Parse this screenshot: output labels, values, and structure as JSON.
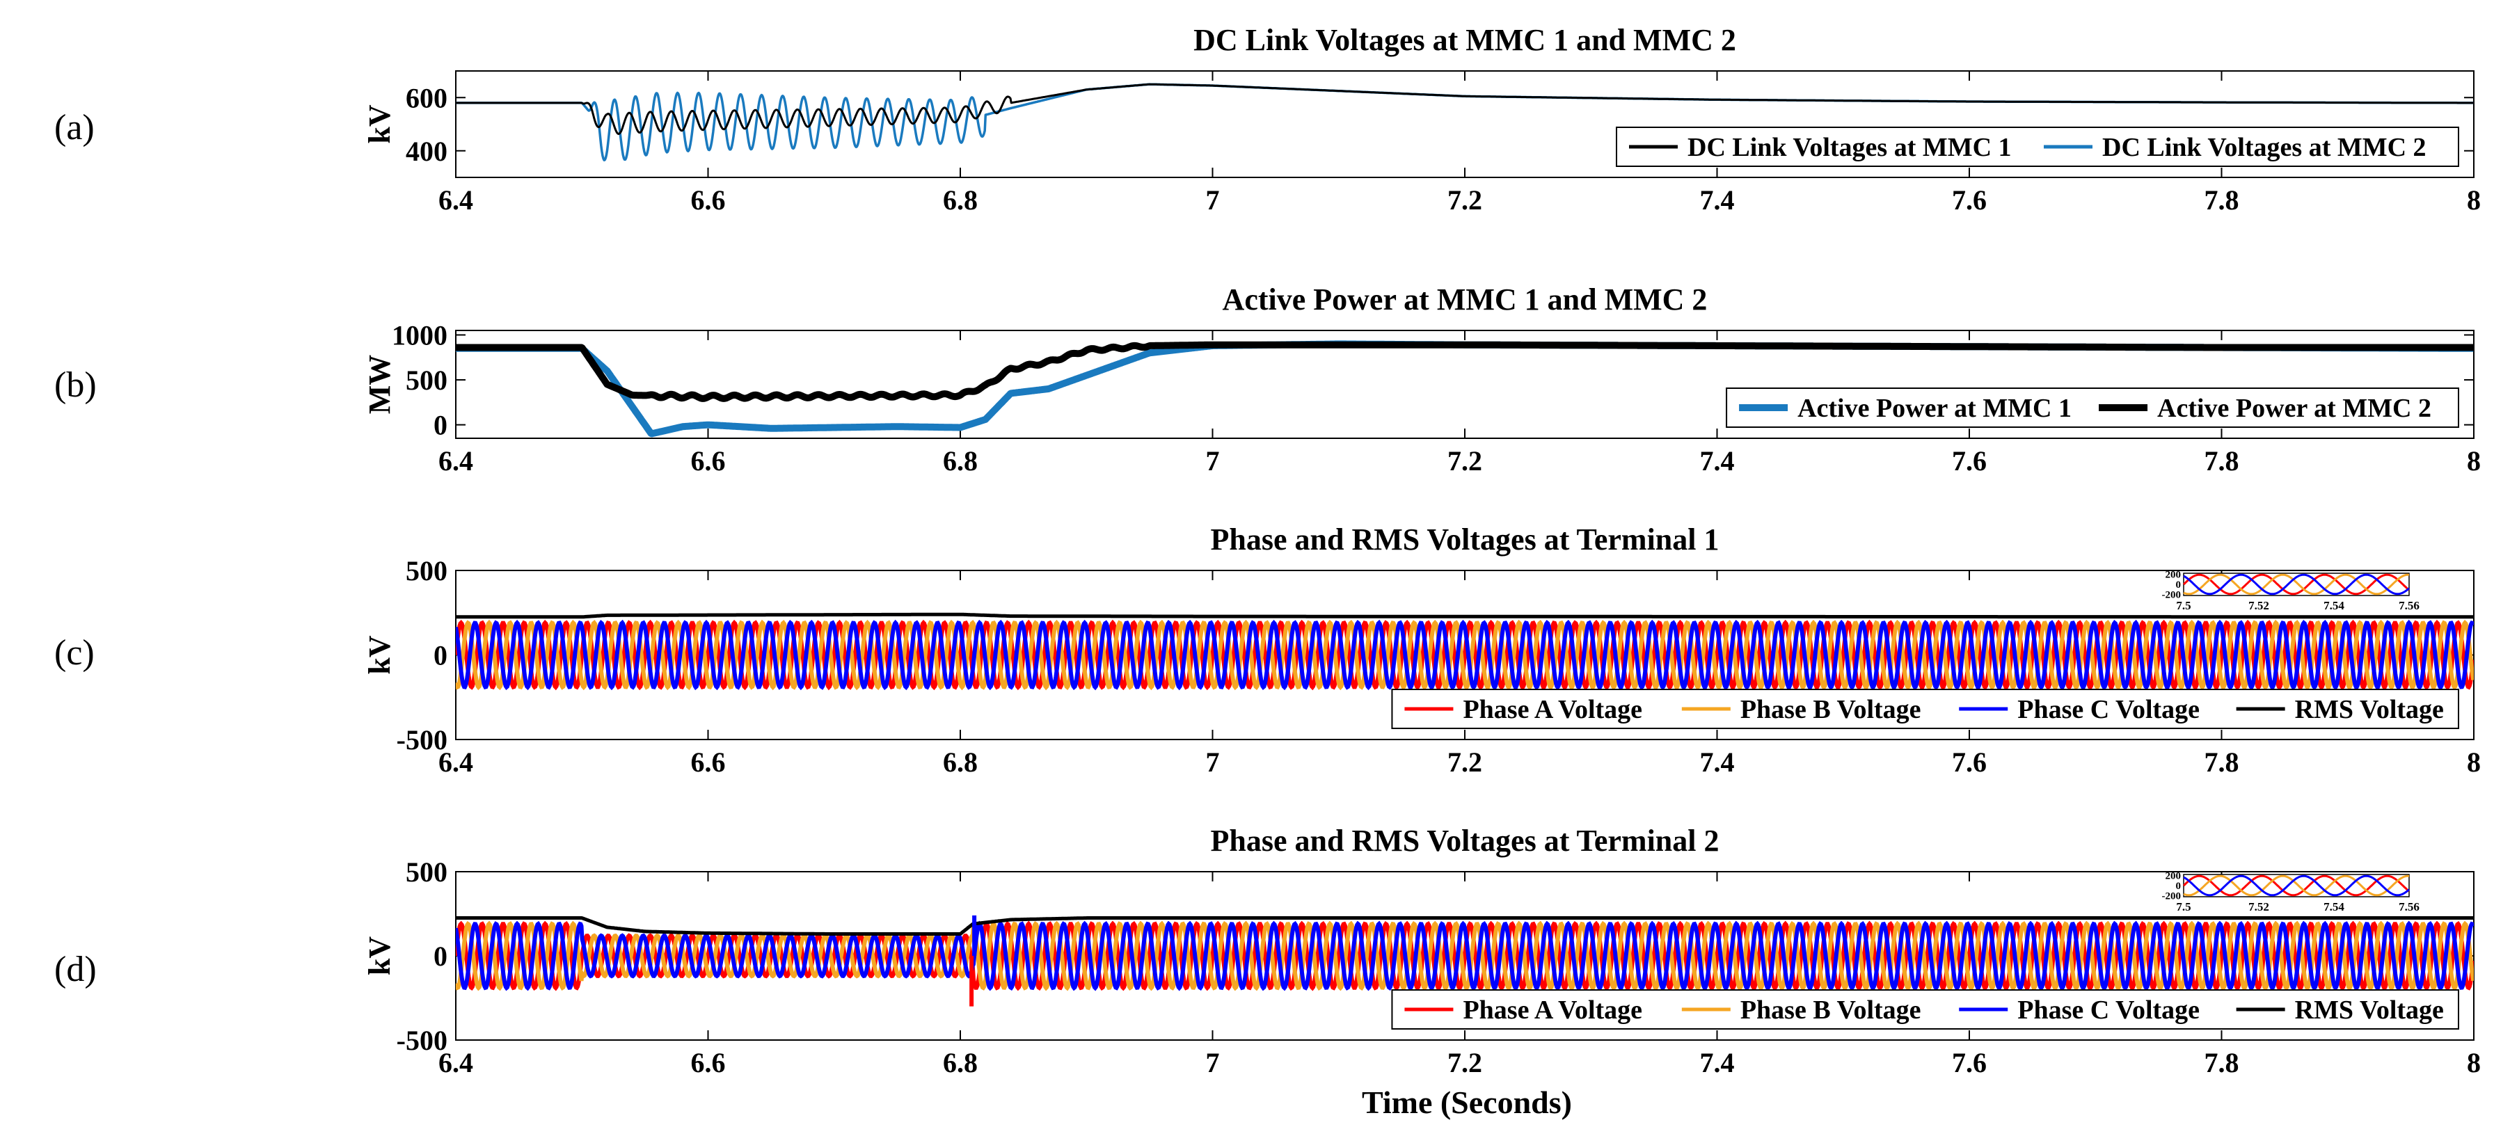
{
  "panel_labels": [
    "(a)",
    "(b)",
    "(c)",
    "(d)"
  ],
  "xlabel": "Time (Seconds)",
  "chart_data": [
    {
      "type": "line",
      "title": "DC Link Voltages at MMC 1 and MMC 2",
      "ylabel": "kV",
      "xlim": [
        6.4,
        8
      ],
      "ylim": [
        300,
        700
      ],
      "xticks": [
        6.4,
        6.6,
        6.8,
        7,
        7.2,
        7.4,
        7.6,
        7.8,
        8
      ],
      "yticks": [
        400,
        600
      ],
      "legend": {
        "placement": "bottom-right",
        "entries": [
          "DC Link Voltages at MMC 1",
          "DC Link Voltages at MMC 2"
        ]
      },
      "series": [
        {
          "name": "DC Link Voltages at MMC 1",
          "color": "#000000",
          "linewidth": 3,
          "points": [
            [
              6.4,
              580
            ],
            [
              6.5,
              580
            ],
            [
              6.52,
              500
            ],
            [
              6.56,
              510
            ],
            [
              6.6,
              515
            ],
            [
              6.7,
              525
            ],
            [
              6.8,
              535
            ],
            [
              6.84,
              580
            ],
            [
              6.9,
              630
            ],
            [
              6.95,
              650
            ],
            [
              7.0,
              645
            ],
            [
              7.1,
              625
            ],
            [
              7.2,
              605
            ],
            [
              7.4,
              592
            ],
            [
              7.6,
              585
            ],
            [
              7.8,
              582
            ],
            [
              8.0,
              580
            ]
          ],
          "oscillation": {
            "start": 6.5,
            "end": 6.84,
            "frequency_hz": 60,
            "amplitude": 40
          }
        },
        {
          "name": "DC Link Voltages at MMC 2",
          "color": "#1a7abf",
          "linewidth": 3.5,
          "points": [
            [
              6.4,
              580
            ],
            [
              6.5,
              580
            ],
            [
              6.52,
              470
            ],
            [
              6.56,
              505
            ],
            [
              6.6,
              510
            ],
            [
              6.7,
              505
            ],
            [
              6.8,
              510
            ],
            [
              6.84,
              560
            ],
            [
              6.9,
              630
            ],
            [
              6.95,
              650
            ],
            [
              7.0,
              645
            ],
            [
              7.1,
              625
            ],
            [
              7.2,
              605
            ],
            [
              7.4,
              592
            ],
            [
              7.6,
              585
            ],
            [
              7.8,
              582
            ],
            [
              8.0,
              580
            ]
          ],
          "oscillation": {
            "start": 6.505,
            "end": 6.82,
            "frequency_hz": 60,
            "amplitude": 120
          }
        }
      ]
    },
    {
      "type": "line",
      "title": "Active Power at MMC 1 and MMC 2",
      "ylabel": "MW",
      "xlim": [
        6.4,
        8
      ],
      "ylim": [
        -150,
        1050
      ],
      "xticks": [
        6.4,
        6.6,
        6.8,
        7,
        7.2,
        7.4,
        7.6,
        7.8,
        8
      ],
      "yticks": [
        0,
        500,
        1000
      ],
      "legend": {
        "placement": "bottom-right",
        "entries": [
          "Active Power at MMC 1",
          "Active Power at MMC 2"
        ]
      },
      "series": [
        {
          "name": "Active Power at MMC 1",
          "color": "#1a7abf",
          "linewidth": 10,
          "points": [
            [
              6.4,
              850
            ],
            [
              6.5,
              850
            ],
            [
              6.52,
              600
            ],
            [
              6.54,
              200
            ],
            [
              6.555,
              -100
            ],
            [
              6.58,
              -20
            ],
            [
              6.6,
              0
            ],
            [
              6.65,
              -40
            ],
            [
              6.7,
              -30
            ],
            [
              6.75,
              -20
            ],
            [
              6.8,
              -30
            ],
            [
              6.82,
              60
            ],
            [
              6.84,
              350
            ],
            [
              6.87,
              400
            ],
            [
              6.9,
              550
            ],
            [
              6.95,
              800
            ],
            [
              7.0,
              880
            ],
            [
              7.1,
              900
            ],
            [
              7.2,
              890
            ],
            [
              7.4,
              880
            ],
            [
              7.6,
              870
            ],
            [
              7.8,
              860
            ],
            [
              8.0,
              850
            ]
          ]
        },
        {
          "name": "Active Power at MMC 2",
          "color": "#000000",
          "linewidth": 10,
          "points": [
            [
              6.4,
              860
            ],
            [
              6.5,
              860
            ],
            [
              6.52,
              450
            ],
            [
              6.54,
              330
            ],
            [
              6.6,
              310
            ],
            [
              6.7,
              320
            ],
            [
              6.8,
              330
            ],
            [
              6.82,
              430
            ],
            [
              6.84,
              620
            ],
            [
              6.87,
              700
            ],
            [
              6.9,
              830
            ],
            [
              6.95,
              880
            ],
            [
              7.0,
              890
            ],
            [
              7.2,
              890
            ],
            [
              7.4,
              880
            ],
            [
              7.6,
              870
            ],
            [
              7.8,
              860
            ],
            [
              8.0,
              860
            ]
          ],
          "oscillation": {
            "start": 6.55,
            "end": 6.95,
            "frequency_hz": 60,
            "amplitude": 20
          }
        }
      ]
    },
    {
      "type": "line",
      "title": "Phase and RMS Voltages at Terminal 1",
      "ylabel": "kV",
      "xlim": [
        6.4,
        8
      ],
      "ylim": [
        -500,
        500
      ],
      "xticks": [
        6.4,
        6.6,
        6.8,
        7,
        7.2,
        7.4,
        7.6,
        7.8,
        8
      ],
      "yticks": [
        -500,
        0,
        500
      ],
      "legend": {
        "placement": "bottom-right",
        "entries": [
          "Phase A Voltage",
          "Phase B Voltage",
          "Phase C Voltage",
          "RMS Voltage"
        ]
      },
      "phase": {
        "frequency_hz": 60,
        "amplitude": 190
      },
      "series": [
        {
          "name": "Phase A Voltage",
          "color": "#ff0000",
          "phase_deg": 0
        },
        {
          "name": "Phase B Voltage",
          "color": "#f5a623",
          "phase_deg": -120
        },
        {
          "name": "Phase C Voltage",
          "color": "#0000ff",
          "phase_deg": 120
        },
        {
          "name": "RMS Voltage",
          "color": "#000000",
          "points": [
            [
              6.4,
              225
            ],
            [
              6.5,
              225
            ],
            [
              6.52,
              235
            ],
            [
              6.8,
              240
            ],
            [
              6.84,
              230
            ],
            [
              7.0,
              228
            ],
            [
              8.0,
              225
            ]
          ]
        }
      ],
      "inset": {
        "placement": "top-right",
        "xlim": [
          7.5,
          7.56
        ],
        "xticks": [
          7.5,
          7.52,
          7.54,
          7.56
        ],
        "yticks": [
          -200,
          0,
          200
        ]
      }
    },
    {
      "type": "line",
      "title": "Phase and RMS Voltages at Terminal 2",
      "ylabel": "kV",
      "xlim": [
        6.4,
        8
      ],
      "ylim": [
        -500,
        500
      ],
      "xticks": [
        6.4,
        6.6,
        6.8,
        7,
        7.2,
        7.4,
        7.6,
        7.8,
        8
      ],
      "yticks": [
        -500,
        0,
        500
      ],
      "legend": {
        "placement": "bottom-right",
        "entries": [
          "Phase A Voltage",
          "Phase B Voltage",
          "Phase C Voltage",
          "RMS Voltage"
        ]
      },
      "phase": {
        "frequency_hz": 60,
        "amplitude": 190,
        "sag": {
          "start": 6.5,
          "end": 6.81,
          "amplitude": 120
        },
        "spike": {
          "x": 6.81,
          "min": -300,
          "max": 240
        }
      },
      "series": [
        {
          "name": "Phase A Voltage",
          "color": "#ff0000",
          "phase_deg": 0
        },
        {
          "name": "Phase B Voltage",
          "color": "#f5a623",
          "phase_deg": -120
        },
        {
          "name": "Phase C Voltage",
          "color": "#0000ff",
          "phase_deg": 120
        },
        {
          "name": "RMS Voltage",
          "color": "#000000",
          "points": [
            [
              6.4,
              225
            ],
            [
              6.5,
              225
            ],
            [
              6.52,
              170
            ],
            [
              6.55,
              145
            ],
            [
              6.6,
              135
            ],
            [
              6.7,
              130
            ],
            [
              6.8,
              130
            ],
            [
              6.81,
              190
            ],
            [
              6.84,
              215
            ],
            [
              6.9,
              225
            ],
            [
              8.0,
              225
            ]
          ]
        }
      ],
      "inset": {
        "placement": "top-right",
        "xlim": [
          7.5,
          7.56
        ],
        "xticks": [
          7.5,
          7.52,
          7.54,
          7.56
        ],
        "yticks": [
          -200,
          0,
          200
        ]
      }
    }
  ]
}
